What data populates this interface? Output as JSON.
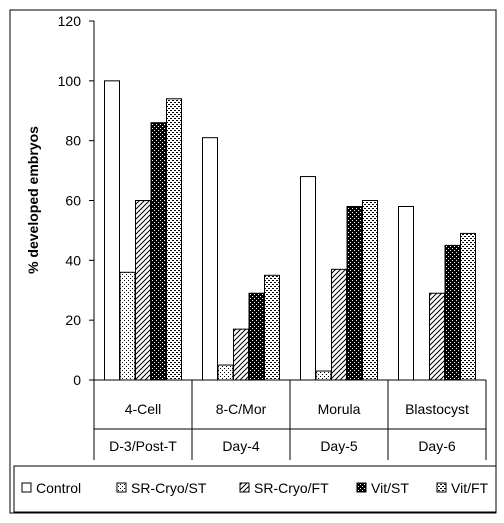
{
  "chart_data": {
    "type": "bar",
    "ylabel": "% developed embryos",
    "ylim": [
      0,
      120
    ],
    "yticks": [
      0,
      20,
      40,
      60,
      80,
      100,
      120
    ],
    "grid": false,
    "legend_position": "bottom",
    "categories": [
      {
        "line1": "4-Cell",
        "line2": "D-3/Post-T"
      },
      {
        "line1": "8-C/Mor",
        "line2": "Day-4"
      },
      {
        "line1": "Morula",
        "line2": "Day-5"
      },
      {
        "line1": "Blastocyst",
        "line2": "Day-6"
      }
    ],
    "series": [
      {
        "name": "Control",
        "pattern": "plain",
        "values": [
          100,
          81,
          68,
          58
        ]
      },
      {
        "name": "SR-Cryo/ST",
        "pattern": "dots",
        "values": [
          36,
          5,
          3,
          0
        ]
      },
      {
        "name": "SR-Cryo/FT",
        "pattern": "diagonal",
        "values": [
          60,
          17,
          37,
          29
        ]
      },
      {
        "name": "Vit/ST",
        "pattern": "dark-checker",
        "values": [
          86,
          29,
          58,
          45
        ]
      },
      {
        "name": "Vit/FT",
        "pattern": "light-checker",
        "values": [
          94,
          35,
          60,
          49
        ]
      }
    ]
  }
}
